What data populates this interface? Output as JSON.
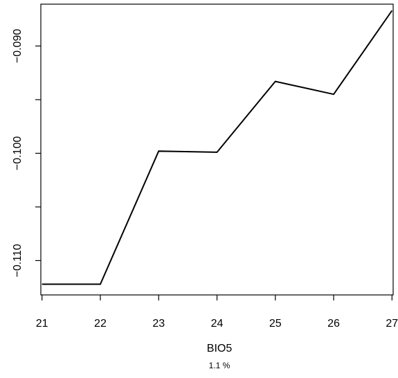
{
  "chart_data": {
    "type": "line",
    "xlabel": "BIO5",
    "subtitle": "1.1 %",
    "ylabel": "",
    "x": [
      21,
      22,
      23,
      24,
      25,
      26,
      27
    ],
    "series": [
      {
        "values": [
          -0.1122,
          -0.1122,
          -0.0998,
          -0.0999,
          -0.0933,
          -0.0945,
          -0.0867
        ]
      }
    ],
    "x_ticks": [
      21,
      22,
      23,
      24,
      25,
      26,
      27
    ],
    "x_tick_labels": [
      "21",
      "22",
      "23",
      "24",
      "25",
      "26",
      "27"
    ],
    "y_ticks": [
      -0.11,
      -0.105,
      -0.1,
      -0.095,
      -0.09
    ],
    "y_tick_labels": [
      "−0.110",
      "",
      "−0.100",
      "",
      "−0.090"
    ],
    "xlim": [
      20.98,
      27.02
    ],
    "ylim": [
      -0.1132,
      -0.0861
    ],
    "grid": false,
    "colors": {
      "line": "#000000",
      "axis": "#000000",
      "background": "#ffffff"
    }
  }
}
